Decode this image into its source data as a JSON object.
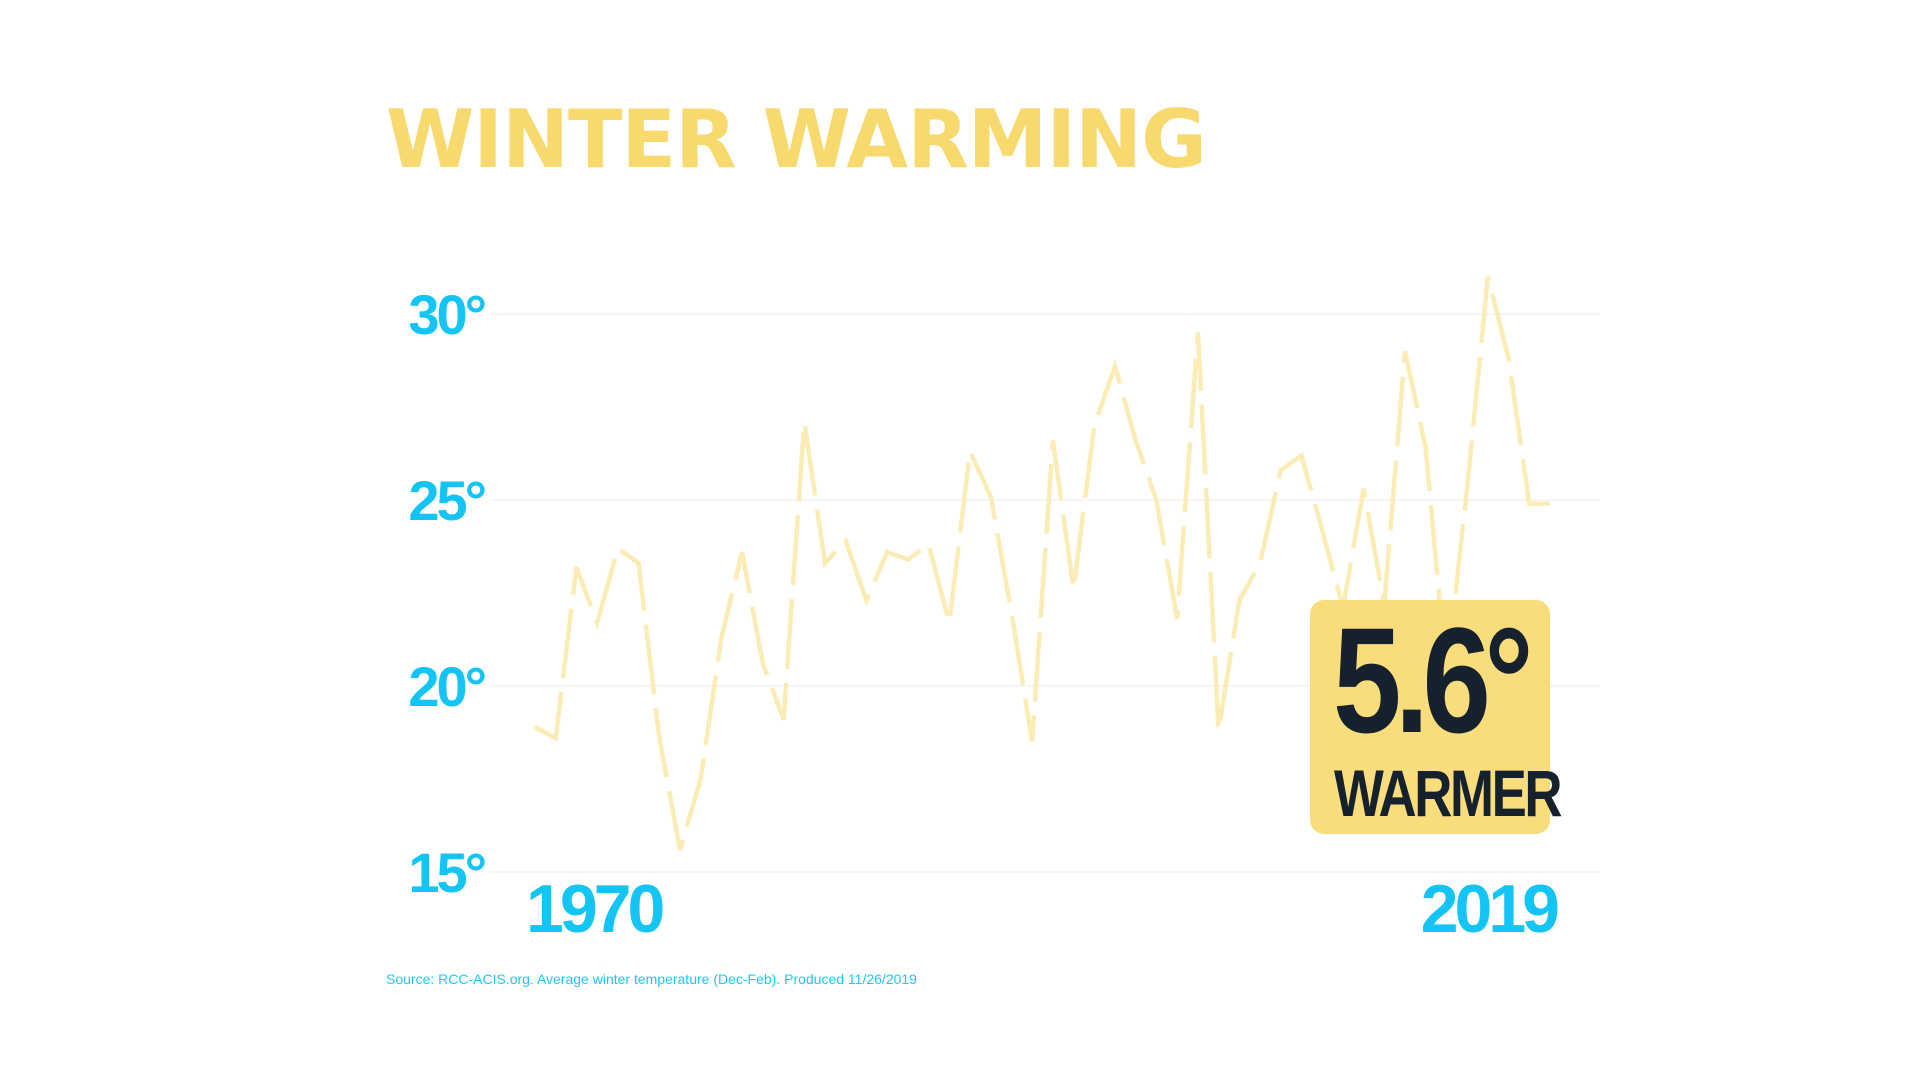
{
  "title": "WINTER WARMING",
  "source": "Source: RCC-ACIS.org. Average winter temperature (Dec-Feb). Produced 11/26/2019",
  "callout": {
    "value": "5.6°",
    "label": "WARMER"
  },
  "colors": {
    "title": "#f7d96e",
    "axis_labels": "#14c4f5",
    "line": "#faecb4",
    "grid": "#f2f2f2",
    "callout_bg": "#f9dd7c",
    "callout_text": "#16212e"
  },
  "chart_data": {
    "type": "line",
    "title": "WINTER WARMING",
    "xlabel": "",
    "ylabel": "",
    "xlim": [
      1970,
      2019
    ],
    "ylim": [
      15,
      31
    ],
    "y_ticks": [
      {
        "value": 30,
        "label": "30°"
      },
      {
        "value": 25,
        "label": "25°"
      },
      {
        "value": 20,
        "label": "20°"
      },
      {
        "value": 15,
        "label": "15°"
      }
    ],
    "x_ticks": [
      {
        "value": 1970,
        "label": "1970"
      },
      {
        "value": 2019,
        "label": "2019"
      }
    ],
    "grid": true,
    "legend": "none",
    "line_style": "dashed",
    "x": [
      1970,
      1971,
      1972,
      1973,
      1974,
      1975,
      1976,
      1977,
      1978,
      1979,
      1980,
      1981,
      1982,
      1983,
      1984,
      1985,
      1986,
      1987,
      1988,
      1989,
      1990,
      1991,
      1992,
      1993,
      1994,
      1995,
      1996,
      1997,
      1998,
      1999,
      2000,
      2001,
      2002,
      2003,
      2004,
      2005,
      2006,
      2007,
      2008,
      2009,
      2010,
      2011,
      2012,
      2013,
      2014,
      2015,
      2016,
      2017,
      2018,
      2019
    ],
    "values": [
      18.9,
      18.6,
      23.2,
      21.7,
      23.7,
      23.3,
      18.6,
      15.6,
      17.5,
      21.3,
      23.6,
      20.6,
      19.1,
      27.1,
      23.3,
      23.9,
      22.3,
      23.6,
      23.4,
      23.8,
      21.7,
      26.3,
      25.1,
      22.0,
      18.5,
      26.6,
      22.6,
      27.0,
      28.6,
      26.6,
      25.0,
      21.8,
      29.5,
      18.8,
      22.3,
      23.3,
      25.8,
      26.2,
      24.2,
      22.1,
      25.3,
      22.2,
      29.0,
      26.4,
      20.3,
      25.3,
      31.0,
      28.8,
      24.9,
      24.9
    ]
  }
}
